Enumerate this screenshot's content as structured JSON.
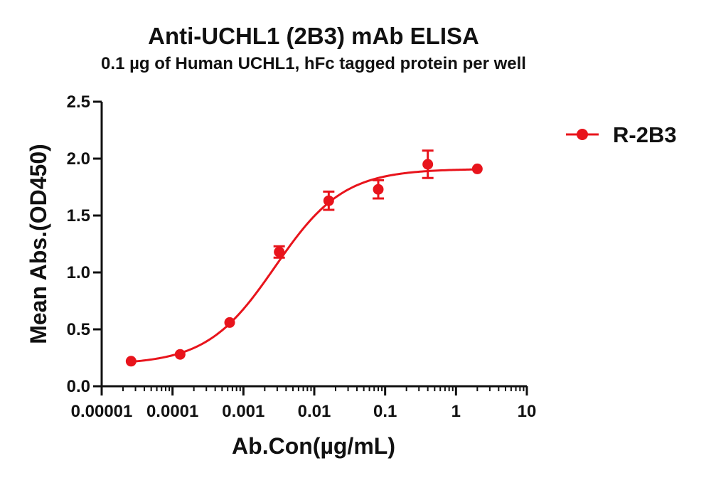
{
  "chart_data": {
    "type": "scatter",
    "title": "Anti-UCHL1 (2B3) mAb ELISA",
    "subtitle": "0.1 µg of Human UCHL1, hFc tagged protein per well",
    "xlabel": "Ab.Con(µg/mL)",
    "ylabel": "Mean Abs.(OD450)",
    "x_scale": "log",
    "xlim": [
      1e-05,
      10
    ],
    "ylim": [
      0,
      2.5
    ],
    "x_ticks": [
      1e-05,
      0.0001,
      0.001,
      0.01,
      0.1,
      1,
      10
    ],
    "x_tick_labels": [
      "0.00001",
      "0.0001",
      "0.001",
      "0.01",
      "0.1",
      "1",
      "10"
    ],
    "y_ticks": [
      0,
      0.5,
      1.0,
      1.5,
      2.0,
      2.5
    ],
    "y_tick_labels": [
      "0.0",
      "0.5",
      "1.0",
      "1.5",
      "2.0",
      "2.5"
    ],
    "grid": false,
    "legend_position": "top-right",
    "series": [
      {
        "name": "R-2B3",
        "color": "#e8141c",
        "x": [
          2.6e-05,
          0.000128,
          0.00064,
          0.0032,
          0.016,
          0.08,
          0.4,
          2.0
        ],
        "y": [
          0.22,
          0.28,
          0.56,
          1.18,
          1.63,
          1.73,
          1.95,
          1.91
        ],
        "error": [
          0.01,
          0.01,
          0.01,
          0.05,
          0.08,
          0.08,
          0.12,
          0.01
        ],
        "fit": {
          "model": "4PL",
          "bottom": 0.19,
          "top": 1.91,
          "ec50": 0.0028,
          "hill": 0.9
        }
      }
    ]
  }
}
